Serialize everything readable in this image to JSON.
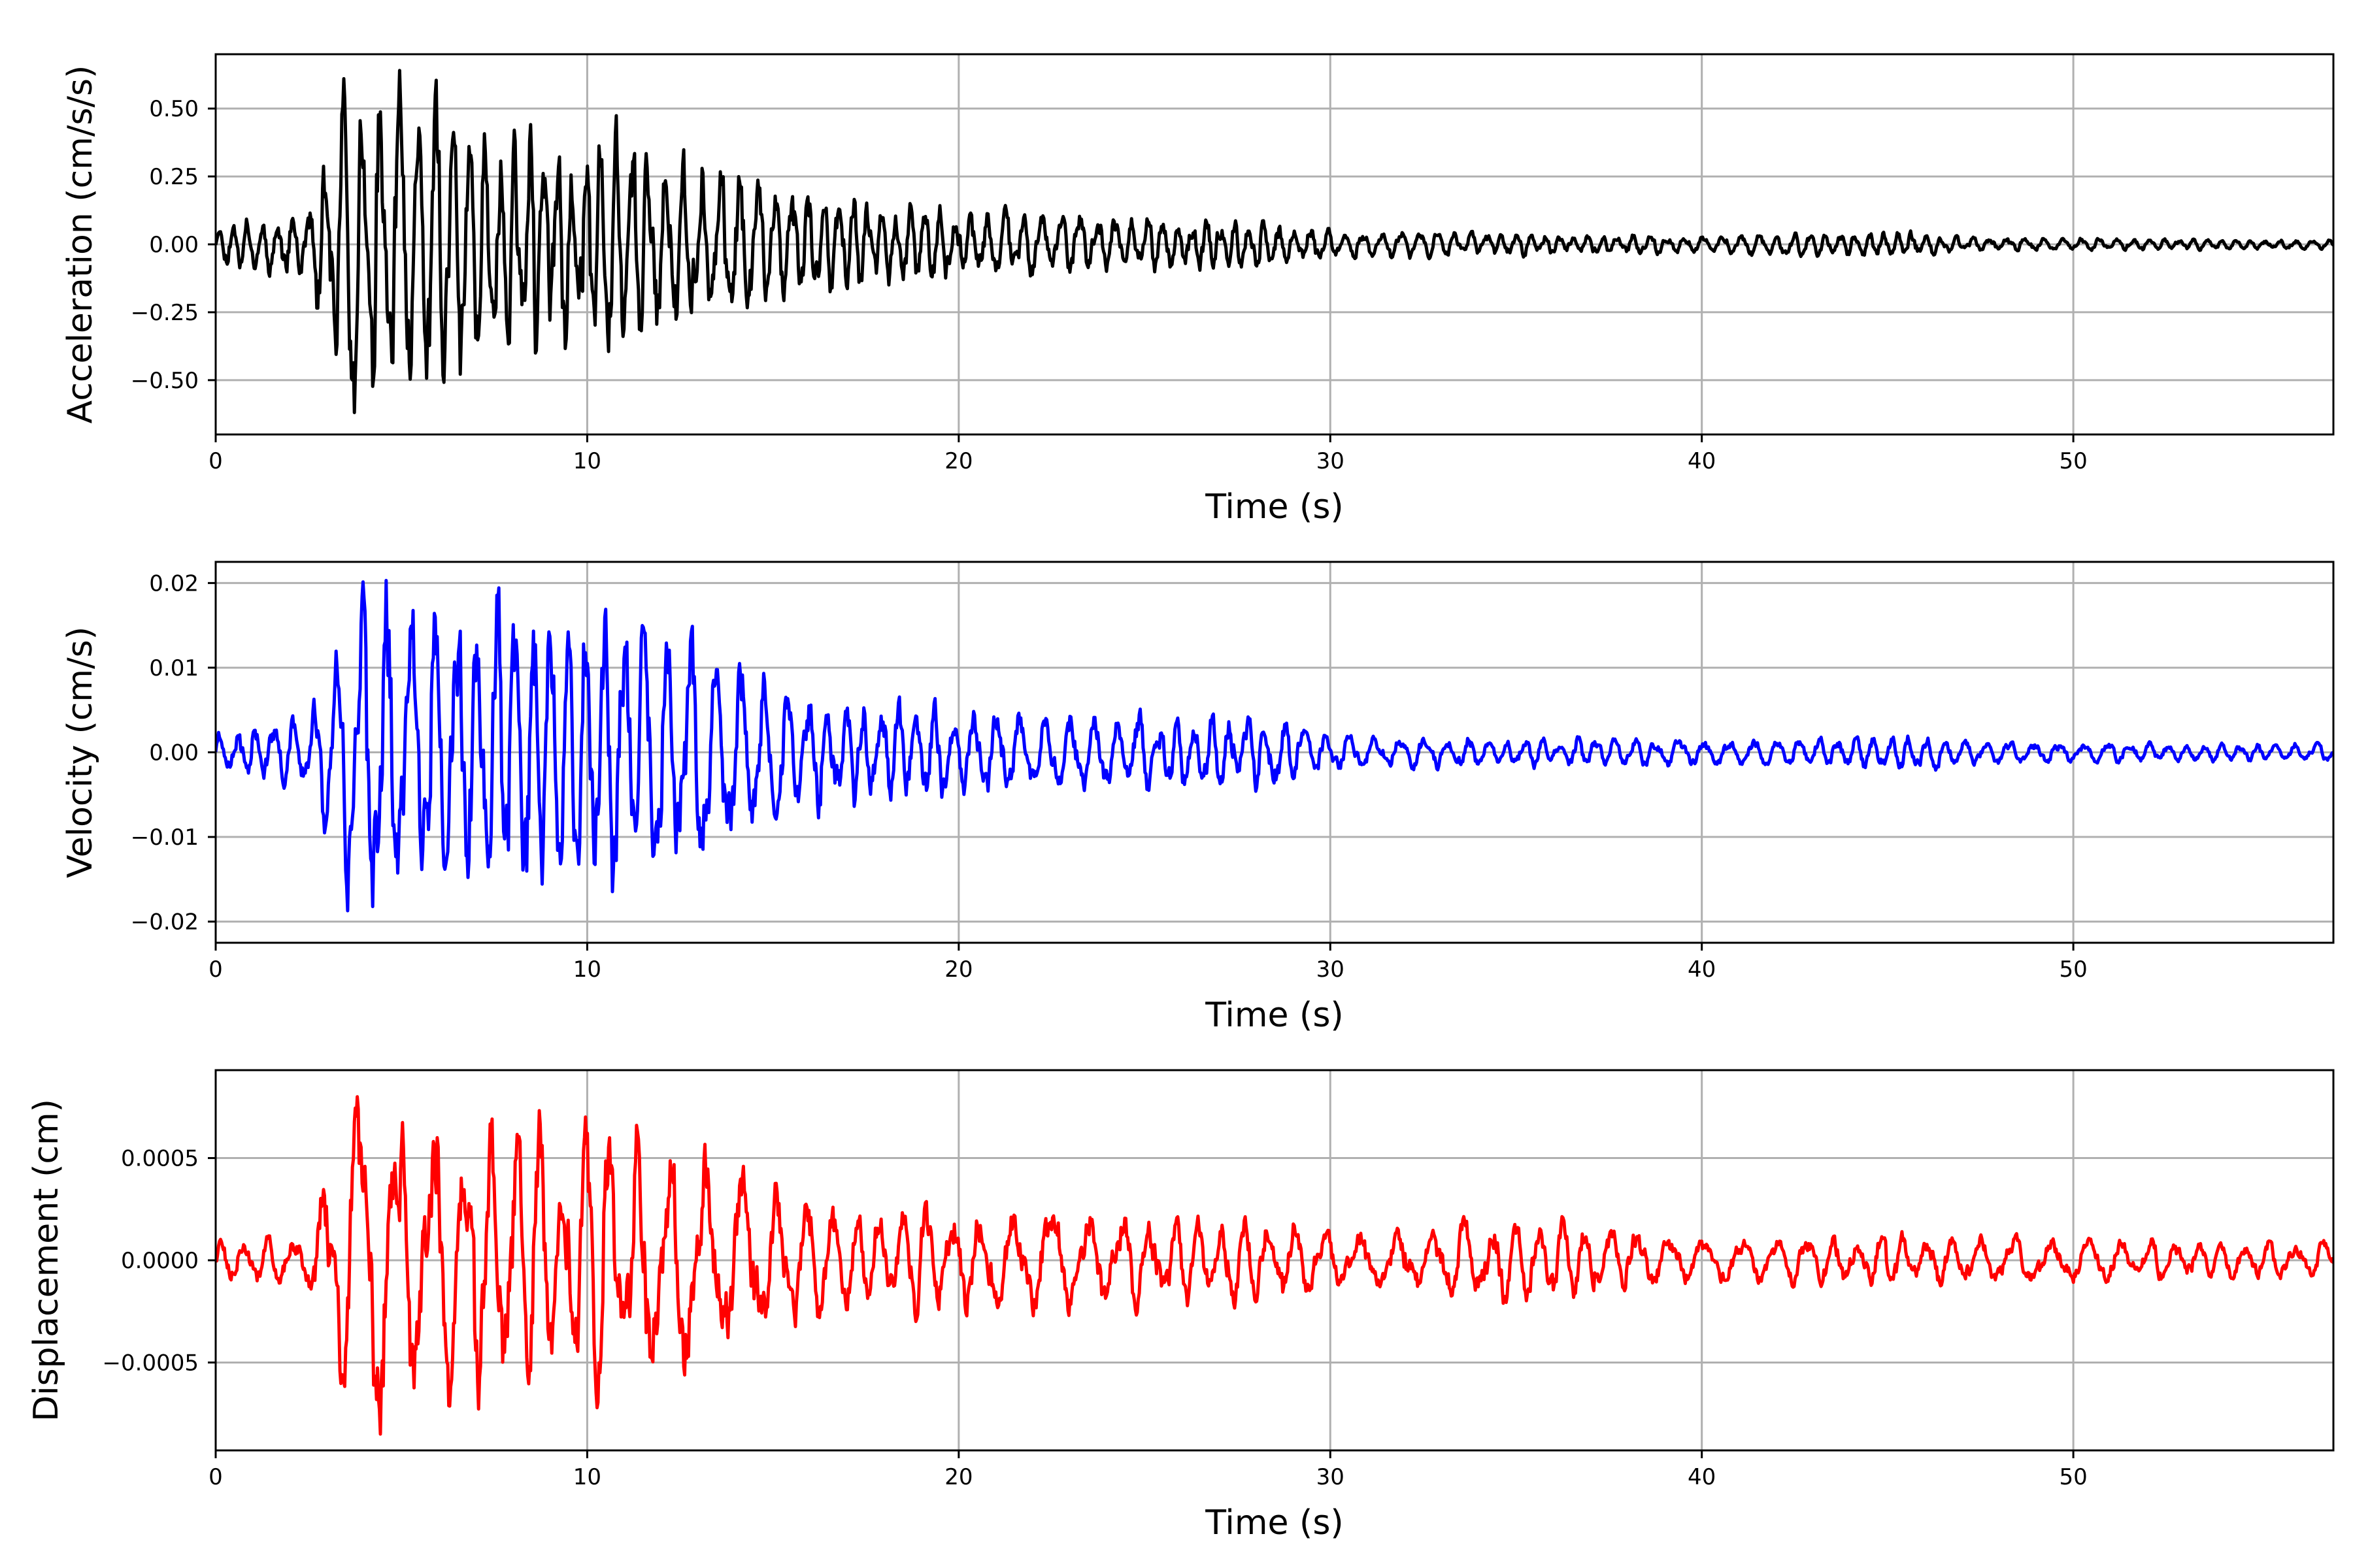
{
  "chart_data": [
    {
      "type": "line",
      "color": "#000000",
      "xlabel": "Time (s)",
      "ylabel": "Acceleration (cm/s/s)",
      "xlim": [
        0,
        57
      ],
      "ylim": [
        -0.7,
        0.7
      ],
      "xticks": [
        0,
        10,
        20,
        30,
        40,
        50
      ],
      "xtick_labels": [
        "0",
        "10",
        "20",
        "30",
        "40",
        "50"
      ],
      "yticks": [
        -0.5,
        -0.25,
        0,
        0.25,
        0.5
      ],
      "ytick_labels": [
        "−0.50",
        "−0.25",
        "0.00",
        "0.25",
        "0.50"
      ],
      "grid": true,
      "peak": 0.64,
      "seed": 11,
      "freq": 2.3,
      "envelope": [
        [
          0,
          0.12
        ],
        [
          2.5,
          0.2
        ],
        [
          3.4,
          0.95
        ],
        [
          5.8,
          0.9
        ],
        [
          7.5,
          0.65
        ],
        [
          11.5,
          0.6
        ],
        [
          14,
          0.42
        ],
        [
          17,
          0.26
        ],
        [
          20,
          0.2
        ],
        [
          28.5,
          0.13
        ],
        [
          30,
          0.08
        ],
        [
          40,
          0.05
        ],
        [
          45.5,
          0.08
        ],
        [
          47,
          0.04
        ],
        [
          57,
          0.025
        ]
      ]
    },
    {
      "type": "line",
      "color": "#0000ff",
      "xlabel": "Time (s)",
      "ylabel": "Velocity (cm/s)",
      "xlim": [
        0,
        57
      ],
      "ylim": [
        -0.0225,
        0.0225
      ],
      "xticks": [
        0,
        10,
        20,
        30,
        40,
        50
      ],
      "xtick_labels": [
        "0",
        "10",
        "20",
        "30",
        "40",
        "50"
      ],
      "yticks": [
        -0.02,
        -0.01,
        0,
        0.01,
        0.02
      ],
      "ytick_labels": [
        "−0.02",
        "−0.01",
        "0.00",
        "0.01",
        "0.02"
      ],
      "grid": true,
      "peak": 0.0203,
      "seed": 23,
      "freq": 1.8,
      "envelope": [
        [
          0,
          0.12
        ],
        [
          2.5,
          0.2
        ],
        [
          3.4,
          0.8
        ],
        [
          4.2,
          0.95
        ],
        [
          6,
          0.85
        ],
        [
          7.5,
          0.85
        ],
        [
          11.5,
          0.8
        ],
        [
          14,
          0.5
        ],
        [
          17,
          0.3
        ],
        [
          20,
          0.25
        ],
        [
          28.5,
          0.2
        ],
        [
          30,
          0.1
        ],
        [
          40,
          0.07
        ],
        [
          46,
          0.1
        ],
        [
          48,
          0.06
        ],
        [
          57,
          0.05
        ]
      ]
    },
    {
      "type": "line",
      "color": "#ff0000",
      "xlabel": "Time (s)",
      "ylabel": "Displacement (cm)",
      "xlim": [
        0,
        57
      ],
      "ylim": [
        -0.00093,
        0.00093
      ],
      "xticks": [
        0,
        10,
        20,
        30,
        40,
        50
      ],
      "xtick_labels": [
        "0",
        "10",
        "20",
        "30",
        "40",
        "50"
      ],
      "yticks": [
        -0.0005,
        0,
        0.0005
      ],
      "ytick_labels": [
        "−0.0005",
        "0.0000",
        "0.0005"
      ],
      "grid": true,
      "peak": 0.00085,
      "seed": 37,
      "freq": 1.3,
      "envelope": [
        [
          0,
          0.12
        ],
        [
          2.5,
          0.15
        ],
        [
          3.4,
          0.85
        ],
        [
          4.5,
          0.95
        ],
        [
          6,
          0.8
        ],
        [
          7.5,
          0.8
        ],
        [
          11.5,
          0.75
        ],
        [
          14,
          0.55
        ],
        [
          17,
          0.3
        ],
        [
          20,
          0.3
        ],
        [
          28.5,
          0.25
        ],
        [
          30,
          0.15
        ],
        [
          35,
          0.25
        ],
        [
          40,
          0.12
        ],
        [
          45,
          0.15
        ],
        [
          50,
          0.12
        ],
        [
          57,
          0.1
        ]
      ]
    }
  ]
}
